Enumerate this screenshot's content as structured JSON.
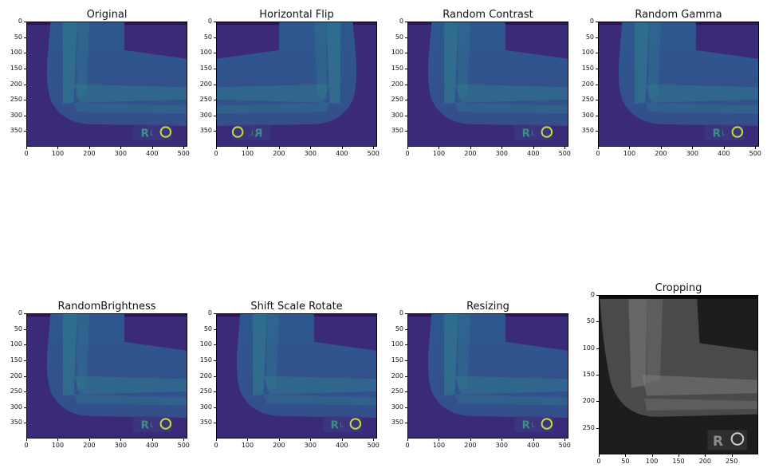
{
  "figure": {
    "panels": [
      {
        "id": "original",
        "title": "Original",
        "colormap": "viridis",
        "flip": false,
        "x_ticks": [
          "0",
          "100",
          "200",
          "300",
          "400",
          "500"
        ],
        "x_tick_values": [
          0,
          100,
          200,
          300,
          400,
          500
        ],
        "x_max": 512,
        "y_ticks": [
          "0",
          "50",
          "100",
          "150",
          "200",
          "250",
          "300",
          "350"
        ],
        "y_tick_values": [
          0,
          50,
          100,
          150,
          200,
          250,
          300,
          350
        ],
        "y_max": 400
      },
      {
        "id": "horizontal-flip",
        "title": "Horizontal Flip",
        "colormap": "viridis",
        "flip": true,
        "x_ticks": [
          "0",
          "100",
          "200",
          "300",
          "400",
          "500"
        ],
        "x_tick_values": [
          0,
          100,
          200,
          300,
          400,
          500
        ],
        "x_max": 512,
        "y_ticks": [
          "0",
          "50",
          "100",
          "150",
          "200",
          "250",
          "300",
          "350"
        ],
        "y_tick_values": [
          0,
          50,
          100,
          150,
          200,
          250,
          300,
          350
        ],
        "y_max": 400
      },
      {
        "id": "random-contrast",
        "title": "Random Contrast",
        "colormap": "viridis",
        "flip": false,
        "x_ticks": [
          "0",
          "100",
          "200",
          "300",
          "400",
          "500"
        ],
        "x_tick_values": [
          0,
          100,
          200,
          300,
          400,
          500
        ],
        "x_max": 512,
        "y_ticks": [
          "0",
          "50",
          "100",
          "150",
          "200",
          "250",
          "300",
          "350"
        ],
        "y_tick_values": [
          0,
          50,
          100,
          150,
          200,
          250,
          300,
          350
        ],
        "y_max": 400
      },
      {
        "id": "random-gamma",
        "title": "Random Gamma",
        "colormap": "viridis",
        "flip": false,
        "x_ticks": [
          "0",
          "100",
          "200",
          "300",
          "400",
          "500"
        ],
        "x_tick_values": [
          0,
          100,
          200,
          300,
          400,
          500
        ],
        "x_max": 512,
        "y_ticks": [
          "0",
          "50",
          "100",
          "150",
          "200",
          "250",
          "300",
          "350"
        ],
        "y_tick_values": [
          0,
          50,
          100,
          150,
          200,
          250,
          300,
          350
        ],
        "y_max": 400
      },
      {
        "id": "random-brightness",
        "title": "RandomBrightness",
        "colormap": "viridis",
        "flip": false,
        "x_ticks": [
          "0",
          "100",
          "200",
          "300",
          "400",
          "500"
        ],
        "x_tick_values": [
          0,
          100,
          200,
          300,
          400,
          500
        ],
        "x_max": 512,
        "y_ticks": [
          "0",
          "50",
          "100",
          "150",
          "200",
          "250",
          "300",
          "350"
        ],
        "y_tick_values": [
          0,
          50,
          100,
          150,
          200,
          250,
          300,
          350
        ],
        "y_max": 400
      },
      {
        "id": "shift-scale-rotate",
        "title": "Shift Scale Rotate",
        "colormap": "viridis",
        "flip": false,
        "x_ticks": [
          "0",
          "100",
          "200",
          "300",
          "400",
          "500"
        ],
        "x_tick_values": [
          0,
          100,
          200,
          300,
          400,
          500
        ],
        "x_max": 512,
        "y_ticks": [
          "0",
          "50",
          "100",
          "150",
          "200",
          "250",
          "300",
          "350"
        ],
        "y_tick_values": [
          0,
          50,
          100,
          150,
          200,
          250,
          300,
          350
        ],
        "y_max": 400
      },
      {
        "id": "resizing",
        "title": "Resizing",
        "colormap": "viridis",
        "flip": false,
        "x_ticks": [
          "0",
          "100",
          "200",
          "300",
          "400",
          "500"
        ],
        "x_tick_values": [
          0,
          100,
          200,
          300,
          400,
          500
        ],
        "x_max": 512,
        "y_ticks": [
          "0",
          "50",
          "100",
          "150",
          "200",
          "250",
          "300",
          "350"
        ],
        "y_tick_values": [
          0,
          50,
          100,
          150,
          200,
          250,
          300,
          350
        ],
        "y_max": 400
      },
      {
        "id": "cropping",
        "title": "Cropping",
        "colormap": "gray",
        "flip": false,
        "x_ticks": [
          "0",
          "50",
          "100",
          "150",
          "200",
          "250"
        ],
        "x_tick_values": [
          0,
          50,
          100,
          150,
          200,
          250
        ],
        "x_max": 300,
        "y_ticks": [
          "0",
          "50",
          "100",
          "150",
          "200",
          "250"
        ],
        "y_tick_values": [
          0,
          50,
          100,
          150,
          200,
          250
        ],
        "y_max": 300
      }
    ],
    "colors": {
      "viridis_bg": "#3b2a78",
      "viridis_mid": "#2d5a8f",
      "viridis_bone": "#2f7f8f",
      "viridis_bright": "#c7dd3a",
      "gray_bg": "#1d1d1d",
      "gray_mid": "#4a4a4a",
      "gray_bone": "#7a7a7a"
    }
  }
}
